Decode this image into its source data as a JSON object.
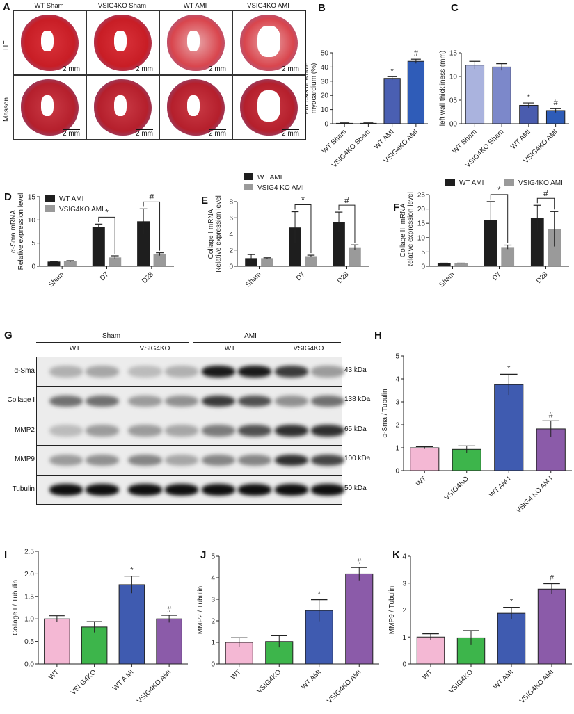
{
  "panel_labels": {
    "A": "A",
    "B": "B",
    "C": "C",
    "D": "D",
    "E": "E",
    "F": "F",
    "G": "G",
    "H": "H",
    "I": "I",
    "J": "J",
    "K": "K"
  },
  "panel_a": {
    "columns": [
      "WT Sham",
      "VSIG4KO Sham",
      "WT AMI",
      "VSIG4KO AMI"
    ],
    "rows": [
      "HE",
      "Masson"
    ],
    "scale_bar": "2 mm"
  },
  "blot": {
    "groups": [
      "Sham",
      "AMI"
    ],
    "subgroups": [
      "WT",
      "VSIG4KO",
      "WT",
      "VSIG4KO"
    ],
    "rows": [
      {
        "label": "α-Sma",
        "kda": "43 kDa",
        "band_intensity": [
          0.25,
          0.3,
          0.2,
          0.25,
          0.95,
          0.95,
          0.8,
          0.35
        ]
      },
      {
        "label": "Collage I",
        "kda": "138 kDa",
        "band_intensity": [
          0.55,
          0.55,
          0.35,
          0.4,
          0.8,
          0.7,
          0.4,
          0.55
        ]
      },
      {
        "label": "MMP2",
        "kda": "65 kDa",
        "band_intensity": [
          0.2,
          0.35,
          0.35,
          0.3,
          0.5,
          0.7,
          0.85,
          0.85
        ]
      },
      {
        "label": "MMP9",
        "kda": "100 kDa",
        "band_intensity": [
          0.35,
          0.4,
          0.45,
          0.3,
          0.45,
          0.45,
          0.85,
          0.75
        ]
      },
      {
        "label": "Tubulin",
        "kda": "50 kDa",
        "band_intensity": [
          1,
          1,
          1,
          1,
          1,
          1,
          1,
          1
        ]
      }
    ]
  },
  "chart_data": [
    {
      "panel": "B",
      "type": "bar",
      "categories": [
        "WT Sham",
        "VSIG4KO Sham",
        "WT AMI",
        "VSIG4KO AMI"
      ],
      "values": [
        0.3,
        0.3,
        32,
        44
      ],
      "errors": [
        0.3,
        0.3,
        1.2,
        1.5
      ],
      "annotations": [
        "",
        "",
        "*",
        "#"
      ],
      "colors": [
        "#6b79c4",
        "#5568bb",
        "#4a5fb2",
        "#2f5cb8"
      ],
      "ylabel": [
        "Fibrosis of whole",
        "myocardium (%)"
      ],
      "ylim": [
        0,
        50
      ],
      "yticks": [
        0,
        10,
        20,
        30,
        40,
        50
      ],
      "yticklabels": [
        "0",
        "10",
        "20",
        "30",
        "40",
        "50"
      ]
    },
    {
      "panel": "C",
      "type": "bar",
      "categories": [
        "WT Sham",
        "VSIG4KO Sham",
        "WT AMI",
        "VSIG4KO AMI"
      ],
      "values": [
        12.4,
        12.0,
        3.9,
        2.8
      ],
      "errors": [
        0.8,
        0.7,
        0.5,
        0.4
      ],
      "annotations": [
        "",
        "",
        "*",
        "#"
      ],
      "colors": [
        "#aab3de",
        "#7c88ca",
        "#4a5cae",
        "#2e5cb8"
      ],
      "ylabel": [
        "left wall thickliness (mm)"
      ],
      "ylim": [
        0,
        15
      ],
      "yticks": [
        0,
        5,
        10,
        15
      ],
      "yticklabels": [
        "00",
        "05",
        "10",
        "15"
      ]
    },
    {
      "panel": "D",
      "type": "bar",
      "categories": [
        "Sham",
        "D7",
        "D28"
      ],
      "series": [
        {
          "name": "WT  AMI",
          "values": [
            1,
            8.5,
            9.7
          ],
          "errors": [
            0.05,
            0.6,
            2.7
          ],
          "color": "#1e1e1e"
        },
        {
          "name": "VSIG4KO AMI",
          "values": [
            1.05,
            1.9,
            2.6
          ],
          "errors": [
            0.15,
            0.35,
            0.3
          ],
          "color": "#9a9a9a"
        }
      ],
      "annotations": [
        "",
        "*",
        "#"
      ],
      "legend": "top-left",
      "ylabel": [
        "α-Sma mRNA",
        "Relative expression level"
      ],
      "ylim": [
        0,
        15
      ],
      "yticks": [
        0,
        5,
        10,
        15
      ],
      "yticklabels": [
        "0",
        "5",
        "10",
        "15"
      ]
    },
    {
      "panel": "E",
      "type": "bar",
      "categories": [
        "Sham",
        "D7",
        "D28"
      ],
      "series": [
        {
          "name": "WT AMI",
          "values": [
            1,
            4.8,
            5.5
          ],
          "errors": [
            0.45,
            1.95,
            1.2
          ],
          "color": "#1e1e1e"
        },
        {
          "name": "VSIG4 KO AMI",
          "values": [
            1,
            1.25,
            2.35
          ],
          "errors": [
            0.05,
            0.12,
            0.3
          ],
          "color": "#9a9a9a"
        }
      ],
      "annotations": [
        "",
        "*",
        "#"
      ],
      "legend": "top",
      "ylabel": [
        "Collage I mRNA",
        "Relative expression level"
      ],
      "ylim": [
        0,
        8
      ],
      "yticks": [
        0,
        2,
        4,
        6,
        8
      ],
      "yticklabels": [
        "0",
        "2",
        "4",
        "6",
        "8"
      ]
    },
    {
      "panel": "F",
      "type": "bar",
      "categories": [
        "Sham",
        "D7",
        "D28"
      ],
      "series": [
        {
          "name": "WT AMI",
          "values": [
            1,
            16.2,
            16.8
          ],
          "errors": [
            0.1,
            6.4,
            4.5
          ],
          "color": "#1e1e1e"
        },
        {
          "name": "VSIG4KO AMI",
          "values": [
            1,
            6.7,
            13
          ],
          "errors": [
            0.1,
            0.7,
            6.1
          ],
          "color": "#9a9a9a"
        }
      ],
      "annotations": [
        "",
        "*",
        "#"
      ],
      "legend": "top",
      "ylabel": [
        "Collage III mRNA",
        "Relative expression level"
      ],
      "ylim": [
        0,
        25
      ],
      "yticks": [
        0,
        5,
        10,
        15,
        20,
        25
      ],
      "yticklabels": [
        "0",
        "5",
        "10",
        "15",
        "20",
        "25"
      ]
    },
    {
      "panel": "H",
      "type": "bar",
      "categories": [
        "WT",
        "VSIG4KO",
        "WT AM I",
        "VSIG4 KO AM I"
      ],
      "values": [
        1.0,
        0.93,
        3.75,
        1.82
      ],
      "errors": [
        0.05,
        0.15,
        0.45,
        0.35
      ],
      "annotations": [
        "",
        "",
        "*",
        "#"
      ],
      "colors": [
        "#f4b8d4",
        "#3db54b",
        "#3f5bb0",
        "#8b5ba9"
      ],
      "ylabel": [
        "α-Sma / Tubulin"
      ],
      "ylim": [
        0,
        5
      ],
      "yticks": [
        0,
        1,
        2,
        3,
        4,
        5
      ],
      "yticklabels": [
        "0",
        "1",
        "2",
        "3",
        "4",
        "5"
      ]
    },
    {
      "panel": "I",
      "type": "bar",
      "categories": [
        "WT",
        "VSI G4KO",
        "WT A MI",
        "VSIG4KO AMI"
      ],
      "values": [
        1.0,
        0.82,
        1.76,
        1.0
      ],
      "errors": [
        0.07,
        0.12,
        0.19,
        0.08
      ],
      "annotations": [
        "",
        "",
        "*",
        "#"
      ],
      "colors": [
        "#f4b8d4",
        "#3db54b",
        "#3f5bb0",
        "#8b5ba9"
      ],
      "ylabel": [
        "Collage I / Tubulin"
      ],
      "ylim": [
        0,
        2.5
      ],
      "yticks": [
        0,
        0.5,
        1,
        1.5,
        2,
        2.5
      ],
      "yticklabels": [
        "0.0",
        "0.5",
        "1.0",
        "1.5",
        "2.0",
        "2.5"
      ]
    },
    {
      "panel": "J",
      "type": "bar",
      "categories": [
        "WT",
        "VSIG4KO",
        "WT AMI",
        "VSIG4KO AMI"
      ],
      "values": [
        1.0,
        1.04,
        2.48,
        4.18
      ],
      "errors": [
        0.22,
        0.27,
        0.5,
        0.3
      ],
      "annotations": [
        "",
        "",
        "*",
        "#"
      ],
      "colors": [
        "#f4b8d4",
        "#3db54b",
        "#3f5bb0",
        "#8b5ba9"
      ],
      "ylabel": [
        "MMP2 / Tubulin"
      ],
      "ylim": [
        0,
        5
      ],
      "yticks": [
        0,
        1,
        2,
        3,
        4,
        5
      ],
      "yticklabels": [
        "0",
        "1",
        "2",
        "3",
        "4",
        "5"
      ]
    },
    {
      "panel": "K",
      "type": "bar",
      "categories": [
        "WT",
        "VSIG4KO",
        "WT AMI",
        "VSIG4KO AMI"
      ],
      "values": [
        1.0,
        0.97,
        1.88,
        2.78
      ],
      "errors": [
        0.12,
        0.27,
        0.22,
        0.2
      ],
      "annotations": [
        "",
        "",
        "*",
        "#"
      ],
      "colors": [
        "#f4b8d4",
        "#3db54b",
        "#3f5bb0",
        "#8b5ba9"
      ],
      "ylabel": [
        "MMP9 / Tubulin"
      ],
      "ylim": [
        0,
        4
      ],
      "yticks": [
        0,
        1,
        2,
        3,
        4
      ],
      "yticklabels": [
        "0",
        "1",
        "2",
        "3",
        "4"
      ]
    }
  ]
}
